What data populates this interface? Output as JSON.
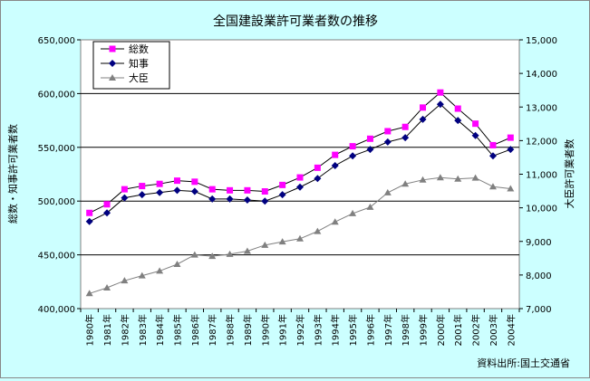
{
  "chart_data": {
    "type": "line",
    "title": "全国建設業許可業者数の推移",
    "ylabel_left": "総数・知事許可業者数",
    "ylabel_right": "大臣許可業者数",
    "source": "資料出所:国土交通省",
    "left_ylim": [
      400000,
      650000
    ],
    "left_ticks": [
      "400,000",
      "450,000",
      "500,000",
      "550,000",
      "600,000",
      "650,000"
    ],
    "right_ylim": [
      7000,
      15000
    ],
    "right_ticks": [
      "7,000",
      "8,000",
      "9,000",
      "10,000",
      "11,000",
      "12,000",
      "13,000",
      "14,000",
      "15,000"
    ],
    "grid": true,
    "legend_position": "top-left",
    "categories": [
      "1980年",
      "1981年",
      "1982年",
      "1983年",
      "1984年",
      "1985年",
      "1986年",
      "1987年",
      "1988年",
      "1989年",
      "1990年",
      "1991年",
      "1992年",
      "1993年",
      "1994年",
      "1995年",
      "1996年",
      "1997年",
      "1998年",
      "1999年",
      "2000年",
      "2001年",
      "2002年",
      "2003年",
      "2004年"
    ],
    "series": [
      {
        "name": "総数",
        "axis": "left",
        "color": "#FF00FF",
        "marker": "square",
        "values": [
          489000,
          497000,
          511000,
          514000,
          516000,
          519000,
          518000,
          511000,
          510000,
          510000,
          509000,
          515000,
          522000,
          531000,
          543000,
          551000,
          558000,
          565000,
          569000,
          587000,
          601000,
          586000,
          572000,
          552000,
          559000
        ]
      },
      {
        "name": "知事",
        "axis": "left",
        "color": "#000080",
        "marker": "diamond",
        "values": [
          481000,
          489000,
          503000,
          506000,
          508000,
          510000,
          509000,
          502000,
          502000,
          501000,
          500000,
          506000,
          513000,
          521000,
          533000,
          542000,
          548000,
          555000,
          559000,
          576000,
          590000,
          575000,
          561000,
          542000,
          548000
        ]
      },
      {
        "name": "大臣",
        "axis": "right",
        "color": "#808080",
        "marker": "triangle",
        "values": [
          7450,
          7620,
          7830,
          7980,
          8120,
          8320,
          8600,
          8560,
          8620,
          8710,
          8890,
          8990,
          9080,
          9300,
          9580,
          9830,
          10020,
          10450,
          10710,
          10830,
          10900,
          10860,
          10890,
          10630,
          10570
        ]
      }
    ]
  }
}
